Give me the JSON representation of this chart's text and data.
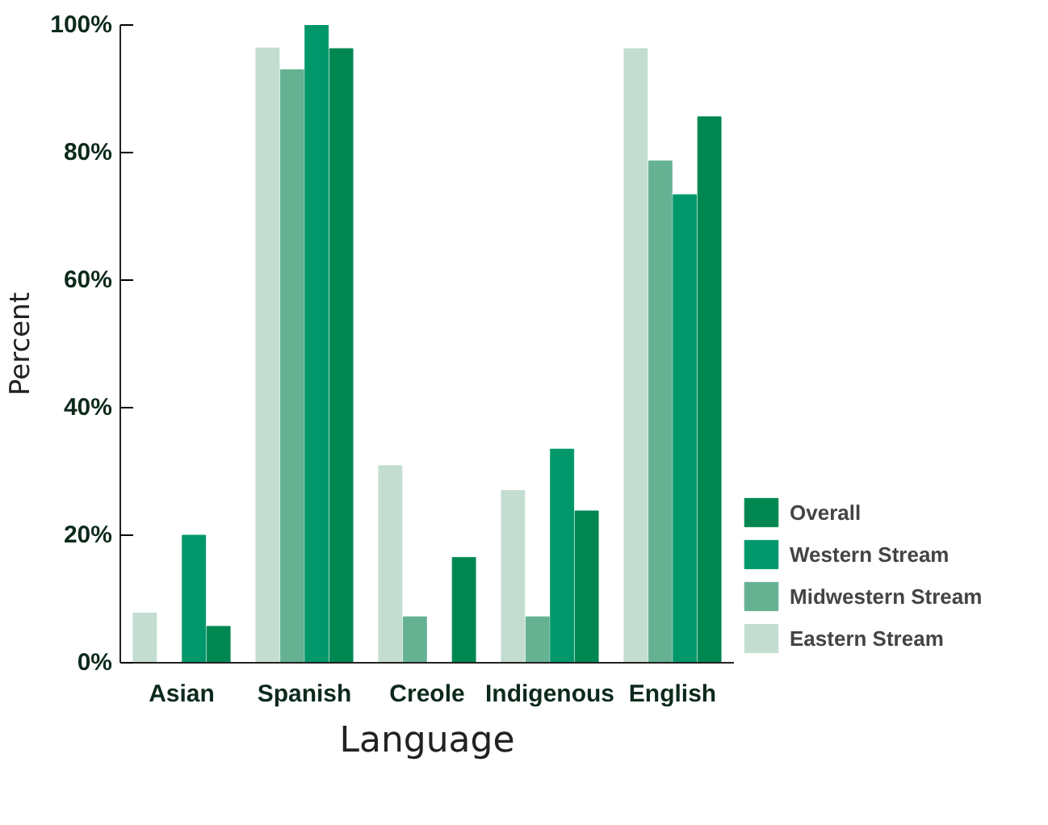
{
  "chart_data": {
    "type": "bar",
    "xlabel": "Language",
    "ylabel": "Percent",
    "categories": [
      "Asian",
      "Spanish",
      "Creole",
      "Indigenous",
      "English"
    ],
    "series": [
      {
        "name": "Eastern Stream",
        "color": "#c3ddd0",
        "values": [
          7.8,
          96.4,
          30.9,
          27,
          96.3
        ]
      },
      {
        "name": "Midwestern Stream",
        "color": "#65b293",
        "values": [
          0,
          93,
          7.2,
          7.2,
          78.7
        ]
      },
      {
        "name": "Western Stream",
        "color": "#00976b",
        "values": [
          20,
          100,
          0,
          33.5,
          73.4
        ]
      },
      {
        "name": "Overall",
        "color": "#008751",
        "values": [
          5.7,
          96.3,
          16.5,
          23.8,
          85.6
        ]
      }
    ],
    "ylim": [
      0,
      100
    ],
    "yticks": [
      {
        "value": 0,
        "label": "0%"
      },
      {
        "value": 20,
        "label": "20%"
      },
      {
        "value": 40,
        "label": "40%"
      },
      {
        "value": 60,
        "label": "60%"
      },
      {
        "value": 80,
        "label": "80%"
      },
      {
        "value": 100,
        "label": "100%"
      }
    ],
    "legend": "bottom right"
  }
}
